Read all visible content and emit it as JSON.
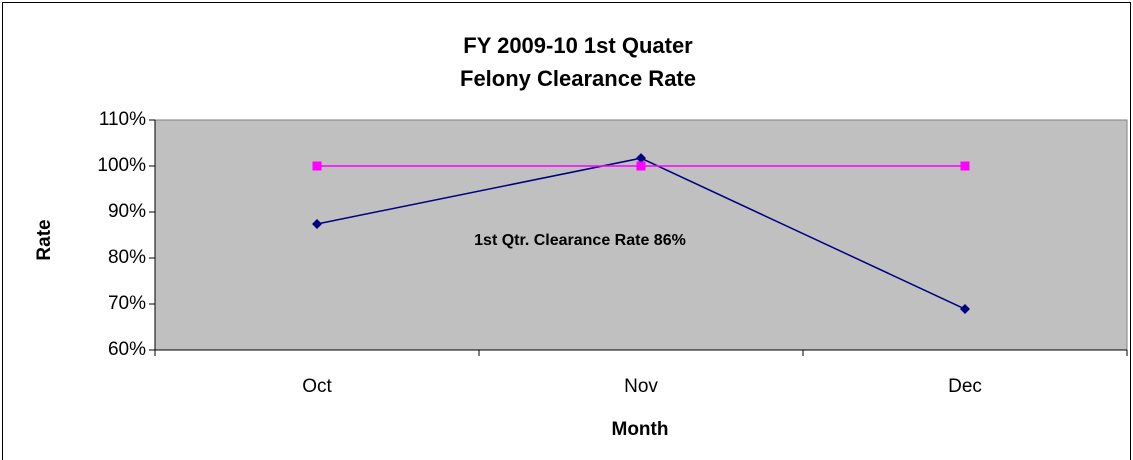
{
  "chart_data": {
    "type": "line",
    "title": [
      "FY 2009-10 1st Quater",
      "Felony Clearance Rate"
    ],
    "x_label": "Month",
    "y_label": "Rate",
    "annotation": "1st Qtr. Clearance Rate 86%",
    "categories": [
      "Oct",
      "Nov",
      "Dec"
    ],
    "series": [
      {
        "color": "#000080",
        "marker": "diamond",
        "values": [
          87.4,
          101.7,
          68.9
        ]
      },
      {
        "color": "#FF00FF",
        "marker": "square",
        "values": [
          100,
          100,
          100
        ]
      }
    ],
    "ylim": [
      60,
      110
    ],
    "yticks": [
      {
        "value": 60,
        "label": "60%"
      },
      {
        "value": 70,
        "label": "70%"
      },
      {
        "value": 80,
        "label": "80%"
      },
      {
        "value": 90,
        "label": "90%"
      },
      {
        "value": 100,
        "label": "100%"
      },
      {
        "value": 110,
        "label": "110%"
      }
    ],
    "plot_background": "#C0C0C0"
  }
}
